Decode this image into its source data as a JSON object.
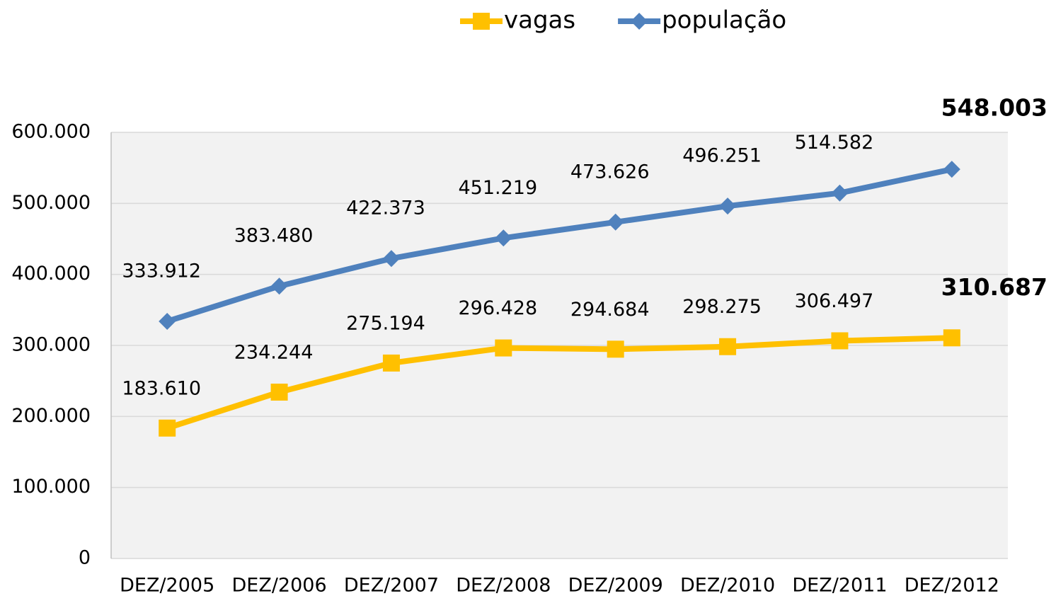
{
  "chart_data": {
    "type": "line",
    "categories": [
      "DEZ/2005",
      "DEZ/2006",
      "DEZ/2007",
      "DEZ/2008",
      "DEZ/2009",
      "DEZ/2010",
      "DEZ/2011",
      "DEZ/2012"
    ],
    "series": [
      {
        "name": "vagas",
        "color": "#ffc000",
        "marker": "square",
        "values": [
          183610,
          234244,
          275194,
          296428,
          294684,
          298275,
          306497,
          310687
        ],
        "value_labels": [
          "183.610",
          "234.244",
          "275.194",
          "296.428",
          "294.684",
          "298.275",
          "306.497",
          "310.687"
        ]
      },
      {
        "name": "população",
        "color": "#4f81bd",
        "marker": "diamond",
        "values": [
          333912,
          383480,
          422373,
          451219,
          473626,
          496251,
          514582,
          548003
        ],
        "value_labels": [
          "333.912",
          "383.480",
          "422.373",
          "451.219",
          "473.626",
          "496.251",
          "514.582",
          "548.003"
        ]
      }
    ],
    "ylim": [
      0,
      600000
    ],
    "yticks": [
      0,
      {
        "value": 100000,
        "label": "100.000"
      },
      {
        "value": 200000,
        "label": "200.000"
      },
      {
        "value": 300000,
        "label": "300.000"
      },
      {
        "value": 400000,
        "label": "400.000"
      },
      {
        "value": 500000,
        "label": "500.000"
      },
      {
        "value": 600000,
        "label": "600.000"
      }
    ],
    "grid": true,
    "legend": "top"
  }
}
